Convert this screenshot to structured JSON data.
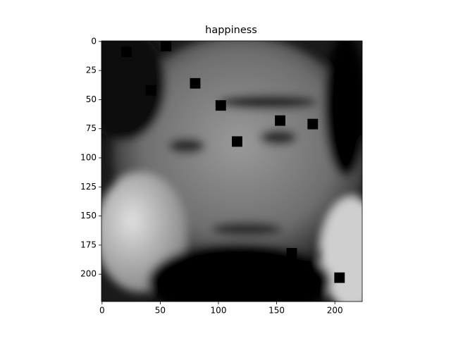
{
  "chart_data": {
    "type": "image",
    "title": "happiness",
    "xlim": [
      -0.5,
      223.5
    ],
    "ylim": [
      223.5,
      -0.5
    ],
    "xticks": [
      0,
      50,
      100,
      150,
      200
    ],
    "yticks": [
      0,
      25,
      50,
      75,
      100,
      125,
      150,
      175,
      200
    ],
    "colormap": "gray",
    "occlusion_size": 9,
    "occlusions": [
      {
        "x": 21,
        "y": 9
      },
      {
        "x": 55,
        "y": 4
      },
      {
        "x": 42,
        "y": 42
      },
      {
        "x": 80,
        "y": 36
      },
      {
        "x": 102,
        "y": 55
      },
      {
        "x": 116,
        "y": 86
      },
      {
        "x": 153,
        "y": 68
      },
      {
        "x": 181,
        "y": 71
      },
      {
        "x": 163,
        "y": 182
      },
      {
        "x": 204,
        "y": 203
      }
    ]
  }
}
